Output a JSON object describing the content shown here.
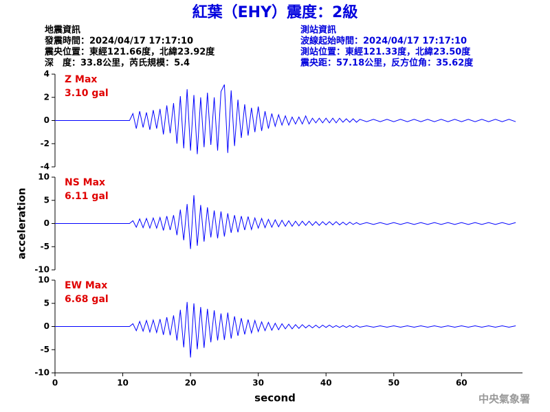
{
  "title": "紅葉（EHY）震度：2級",
  "info_left": [
    "地震資訊",
    "發震時間：2024/04/17 17:17:10",
    "震央位置：東經121.66度，北緯23.92度",
    "深　度：33.8公里，芮氏規模：5.4"
  ],
  "info_right": [
    "測站資訊",
    "波線起始時間：2024/04/17 17:17:10",
    "測站位置：東經121.33度，北緯23.50度",
    "震央距：57.18公里，反方位角：35.62度"
  ],
  "footer": "中央氣象署",
  "chart_data": [
    {
      "type": "line",
      "annotations": [
        "Z Max",
        "3.10 gal"
      ],
      "color": "#0000ff",
      "xlim": [
        0,
        69
      ],
      "ylim": [
        -4,
        4
      ],
      "yticks": [
        -4,
        -2,
        0,
        2,
        4
      ],
      "x": [
        0,
        11,
        11.5,
        12,
        12.5,
        13,
        13.5,
        14,
        14.5,
        15,
        15.5,
        16,
        16.5,
        17,
        17.5,
        18,
        18.5,
        19,
        19.5,
        20,
        20.5,
        21,
        21.5,
        22,
        22.5,
        23,
        23.5,
        24,
        24.5,
        25,
        25.5,
        26,
        26.5,
        27,
        27.5,
        28,
        28.5,
        29,
        29.5,
        30,
        30.5,
        31,
        31.5,
        32,
        32.5,
        33,
        33.5,
        34,
        34.5,
        35,
        35.5,
        36,
        36.5,
        37,
        37.5,
        38,
        38.5,
        39,
        39.5,
        40,
        40.5,
        41,
        41.5,
        42,
        42.5,
        43,
        43.5,
        44,
        44.5,
        45,
        46,
        47,
        48,
        49,
        50,
        51,
        52,
        53,
        54,
        55,
        56,
        57,
        58,
        59,
        60,
        61,
        62,
        63,
        64,
        65,
        66,
        67,
        68
      ],
      "values": [
        0,
        0,
        0.6,
        -0.7,
        0.8,
        -0.6,
        0.7,
        -0.8,
        0.9,
        -0.7,
        1.0,
        -1.2,
        1.3,
        -1.1,
        1.5,
        -2.0,
        2.1,
        -2.4,
        2.7,
        -2.6,
        2.2,
        -2.9,
        2.0,
        -2.3,
        2.4,
        -2.1,
        2.0,
        -2.6,
        2.5,
        3.1,
        -2.8,
        2.6,
        -2.2,
        1.8,
        -1.5,
        1.4,
        -1.3,
        1.1,
        -1.0,
        1.2,
        -0.9,
        0.8,
        -0.7,
        0.6,
        -0.5,
        0.5,
        -0.4,
        0.4,
        -0.4,
        0.3,
        -0.3,
        0.3,
        -0.3,
        0.4,
        -0.3,
        0.2,
        -0.2,
        0.2,
        -0.2,
        0.2,
        -0.2,
        0.2,
        -0.2,
        0.2,
        -0.15,
        0.15,
        -0.15,
        0.15,
        -0.15,
        0.1,
        -0.1,
        0.1,
        -0.1,
        0.1,
        -0.1,
        0.1,
        -0.1,
        0.1,
        -0.1,
        0.1,
        -0.1,
        0.1,
        -0.1,
        0.1,
        -0.1,
        0.1,
        -0.1,
        0.1,
        -0.1,
        0.1,
        -0.1,
        0.1,
        -0.1
      ]
    },
    {
      "type": "line",
      "annotations": [
        "NS Max",
        "6.11 gal"
      ],
      "ylabel": "acceleration",
      "color": "#0000ff",
      "xlim": [
        0,
        69
      ],
      "ylim": [
        -10,
        10
      ],
      "yticks": [
        -10,
        -5,
        0,
        5,
        10
      ],
      "x": [
        0,
        11,
        11.5,
        12,
        12.5,
        13,
        13.5,
        14,
        14.5,
        15,
        15.5,
        16,
        16.5,
        17,
        17.5,
        18,
        18.5,
        19,
        19.5,
        20,
        20.5,
        21,
        21.5,
        22,
        22.5,
        23,
        23.5,
        24,
        24.5,
        25,
        25.5,
        26,
        26.5,
        27,
        27.5,
        28,
        28.5,
        29,
        29.5,
        30,
        30.5,
        31,
        31.5,
        32,
        32.5,
        33,
        33.5,
        34,
        34.5,
        35,
        35.5,
        36,
        36.5,
        37,
        37.5,
        38,
        38.5,
        39,
        39.5,
        40,
        40.5,
        41,
        41.5,
        42,
        42.5,
        43,
        43.5,
        44,
        44.5,
        45,
        46,
        47,
        48,
        49,
        50,
        51,
        52,
        53,
        54,
        55,
        56,
        57,
        58,
        59,
        60,
        61,
        62,
        63,
        64,
        65,
        66,
        67,
        68
      ],
      "values": [
        0,
        0,
        0.6,
        -0.8,
        1.0,
        -0.9,
        1.1,
        -1.0,
        1.2,
        -1.0,
        1.3,
        -1.5,
        1.6,
        -1.4,
        1.8,
        -2.5,
        3.0,
        -3.6,
        4.2,
        -5.5,
        6.1,
        -4.8,
        4.0,
        -3.9,
        3.5,
        -3.0,
        2.8,
        -3.2,
        2.6,
        -2.8,
        2.2,
        -2.0,
        1.8,
        -1.9,
        1.6,
        -1.4,
        1.5,
        -1.3,
        1.2,
        -1.0,
        1.1,
        -0.9,
        0.9,
        -0.8,
        0.8,
        -0.7,
        0.7,
        -0.6,
        0.6,
        -0.6,
        0.5,
        -0.5,
        0.5,
        -0.4,
        0.5,
        -0.4,
        0.4,
        -0.4,
        0.4,
        -0.3,
        0.4,
        -0.3,
        0.4,
        -0.3,
        0.3,
        -0.3,
        0.3,
        -0.2,
        0.2,
        -0.2,
        0.2,
        -0.2,
        0.2,
        -0.2,
        0.2,
        -0.2,
        0.2,
        -0.2,
        0.2,
        -0.2,
        0.2,
        -0.2,
        0.2,
        -0.2,
        0.2,
        -0.2,
        0.2,
        -0.2,
        0.2,
        -0.2,
        0.2,
        -0.2,
        0.2
      ]
    },
    {
      "type": "line",
      "annotations": [
        "EW Max",
        "6.68 gal"
      ],
      "xlabel": "second",
      "color": "#0000ff",
      "xlim": [
        0,
        69
      ],
      "xticks": [
        0,
        10,
        20,
        30,
        40,
        50,
        60
      ],
      "ylim": [
        -10,
        10
      ],
      "yticks": [
        -10,
        -5,
        0,
        5,
        10
      ],
      "x": [
        0,
        11,
        11.5,
        12,
        12.5,
        13,
        13.5,
        14,
        14.5,
        15,
        15.5,
        16,
        16.5,
        17,
        17.5,
        18,
        18.5,
        19,
        19.5,
        20,
        20.5,
        21,
        21.5,
        22,
        22.5,
        23,
        23.5,
        24,
        24.5,
        25,
        25.5,
        26,
        26.5,
        27,
        27.5,
        28,
        28.5,
        29,
        29.5,
        30,
        30.5,
        31,
        31.5,
        32,
        32.5,
        33,
        33.5,
        34,
        34.5,
        35,
        35.5,
        36,
        36.5,
        37,
        37.5,
        38,
        38.5,
        39,
        39.5,
        40,
        40.5,
        41,
        41.5,
        42,
        42.5,
        43,
        43.5,
        44,
        44.5,
        45,
        46,
        47,
        48,
        49,
        50,
        51,
        52,
        53,
        54,
        55,
        56,
        57,
        58,
        59,
        60,
        61,
        62,
        63,
        64,
        65,
        66,
        67,
        68
      ],
      "values": [
        0,
        0,
        0.6,
        -0.9,
        1.1,
        -1.0,
        1.3,
        -1.2,
        1.4,
        -1.3,
        1.6,
        -1.8,
        2.0,
        -1.9,
        2.4,
        -3.0,
        3.6,
        -4.5,
        5.3,
        -6.68,
        5.0,
        -4.9,
        4.2,
        -4.6,
        3.8,
        -3.4,
        3.5,
        -3.0,
        2.8,
        -2.9,
        3.0,
        -2.6,
        2.2,
        -2.0,
        1.8,
        -1.7,
        1.5,
        -1.4,
        1.3,
        -1.1,
        1.0,
        -0.9,
        0.9,
        -0.8,
        0.7,
        -0.7,
        0.6,
        -0.5,
        0.5,
        -0.5,
        0.4,
        -0.4,
        0.4,
        -0.3,
        0.3,
        -0.3,
        0.3,
        -0.3,
        0.3,
        -0.2,
        0.3,
        -0.2,
        0.2,
        -0.2,
        0.2,
        -0.2,
        0.2,
        -0.2,
        0.2,
        -0.15,
        0.15,
        -0.15,
        0.15,
        -0.15,
        0.15,
        -0.15,
        0.15,
        -0.15,
        0.15,
        -0.15,
        0.15,
        -0.15,
        0.15,
        -0.15,
        0.15,
        -0.15,
        0.15,
        -0.15,
        0.15,
        -0.15,
        0.15,
        -0.15,
        0.15
      ]
    }
  ]
}
